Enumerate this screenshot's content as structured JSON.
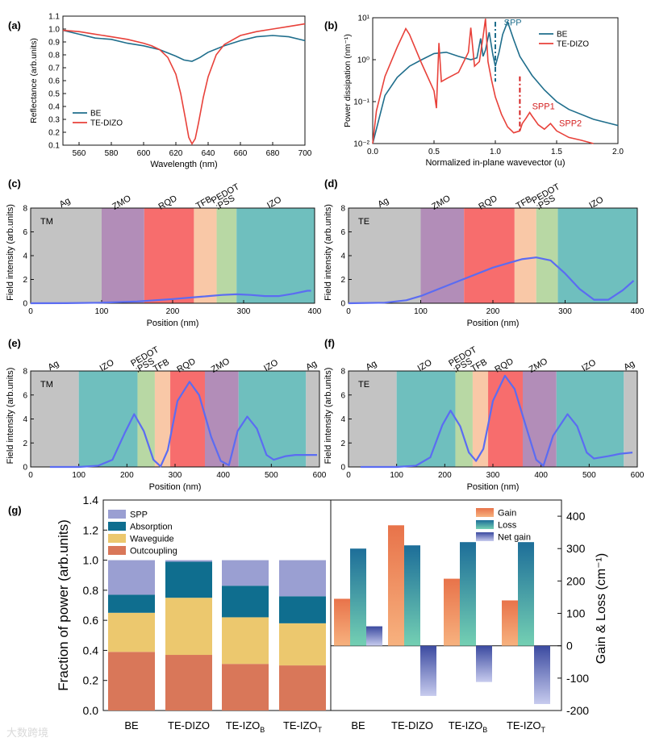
{
  "panels": {
    "a": "(a)",
    "b": "(b)",
    "c": "(c)",
    "d": "(d)",
    "e": "(e)",
    "f": "(f)",
    "g": "(g)"
  },
  "watermark": "大数跨境",
  "chart_data": [
    {
      "id": "a",
      "type": "line",
      "xlabel": "Wavelength (nm)",
      "ylabel": "Reflectance (arb.units)",
      "xlim": [
        550,
        700
      ],
      "ylim": [
        0.1,
        1.1
      ],
      "xticks": [
        560,
        580,
        600,
        620,
        640,
        660,
        680,
        700
      ],
      "yticks": [
        0.1,
        0.2,
        0.3,
        0.4,
        0.5,
        0.6,
        0.7,
        0.8,
        0.9,
        1.0,
        1.1
      ],
      "legend_position": "bottom-left",
      "series": [
        {
          "name": "BE",
          "color": "#1f6e8c",
          "x": [
            550,
            560,
            570,
            580,
            590,
            600,
            610,
            620,
            625,
            630,
            635,
            640,
            650,
            660,
            670,
            680,
            690,
            700
          ],
          "y": [
            0.99,
            0.96,
            0.93,
            0.92,
            0.89,
            0.87,
            0.84,
            0.79,
            0.76,
            0.75,
            0.78,
            0.82,
            0.87,
            0.91,
            0.94,
            0.95,
            0.94,
            0.91
          ]
        },
        {
          "name": "TE-DIZO",
          "color": "#e8413a",
          "x": [
            550,
            560,
            570,
            580,
            590,
            600,
            605,
            610,
            615,
            620,
            623,
            626,
            628,
            630,
            632,
            634,
            637,
            640,
            645,
            650,
            660,
            670,
            680,
            690,
            700
          ],
          "y": [
            0.99,
            0.98,
            0.96,
            0.94,
            0.92,
            0.89,
            0.87,
            0.84,
            0.78,
            0.65,
            0.5,
            0.3,
            0.16,
            0.11,
            0.15,
            0.27,
            0.47,
            0.63,
            0.8,
            0.88,
            0.95,
            0.98,
            1.0,
            1.02,
            1.04
          ]
        }
      ]
    },
    {
      "id": "b",
      "type": "line",
      "xlabel": "Normalized in-plane wavevector (u)",
      "ylabel": "Power dissipation (nm⁻¹)",
      "log_y": true,
      "xlim": [
        0.0,
        2.0
      ],
      "ylim": [
        0.01,
        10
      ],
      "xticks": [
        0.0,
        0.5,
        1.0,
        1.5,
        2.0
      ],
      "yticks": [
        0.01,
        0.1,
        1,
        10
      ],
      "ytick_labels": [
        "10⁻²",
        "10⁻¹",
        "10⁰",
        "10¹"
      ],
      "legend_position": "top-right",
      "annotations": [
        {
          "text": "SPP",
          "x": 1.07,
          "y": 6.5,
          "color": "#1f6e8c"
        },
        {
          "text": "SPP1",
          "x": 1.3,
          "y": 0.065,
          "color": "#d42020"
        },
        {
          "text": "SPP2",
          "x": 1.52,
          "y": 0.026,
          "color": "#d42020"
        }
      ],
      "markers": [
        {
          "x": 1.0,
          "ymin": 0.3,
          "ymax": 8,
          "color": "#1f6e8c"
        },
        {
          "x": 1.2,
          "ymin": 0.02,
          "ymax": 0.4,
          "color": "#d42020"
        }
      ],
      "series": [
        {
          "name": "BE",
          "color": "#1f6e8c",
          "x": [
            0.0,
            0.1,
            0.2,
            0.3,
            0.4,
            0.5,
            0.6,
            0.7,
            0.8,
            0.85,
            0.88,
            0.9,
            0.92,
            0.95,
            0.98,
            1.0,
            1.03,
            1.06,
            1.1,
            1.15,
            1.2,
            1.3,
            1.4,
            1.5,
            1.6,
            1.8,
            2.0
          ],
          "y": [
            0.01,
            0.14,
            0.38,
            0.7,
            1.0,
            1.4,
            1.5,
            1.2,
            1.0,
            1.1,
            3.2,
            1.2,
            1.7,
            4.5,
            1.3,
            0.7,
            1.5,
            4.0,
            8.0,
            3.0,
            1.2,
            0.42,
            0.19,
            0.1,
            0.065,
            0.038,
            0.027
          ]
        },
        {
          "name": "TE-DIZO",
          "color": "#e8413a",
          "x": [
            0.0,
            0.03,
            0.1,
            0.2,
            0.27,
            0.3,
            0.4,
            0.5,
            0.52,
            0.54,
            0.56,
            0.6,
            0.7,
            0.78,
            0.8,
            0.83,
            0.87,
            0.9,
            0.92,
            0.94,
            0.97,
            1.0,
            1.05,
            1.1,
            1.15,
            1.2,
            1.22,
            1.25,
            1.28,
            1.3,
            1.35,
            1.4,
            1.45,
            1.5,
            1.6,
            1.7,
            1.8
          ],
          "y": [
            0.01,
            0.06,
            0.4,
            2.0,
            5.5,
            4.0,
            0.8,
            0.18,
            0.07,
            2.5,
            0.3,
            0.35,
            0.5,
            1.5,
            5.8,
            0.7,
            0.9,
            3.5,
            9.5,
            0.9,
            0.32,
            0.13,
            0.05,
            0.025,
            0.018,
            0.02,
            0.03,
            0.04,
            0.055,
            0.045,
            0.028,
            0.022,
            0.03,
            0.02,
            0.014,
            0.012,
            0.01
          ]
        }
      ]
    },
    {
      "id": "c",
      "type": "line",
      "mode_label": "TM",
      "xlabel": "Position (nm)",
      "ylabel": "Field intensity (arb.units)",
      "xlim": [
        0,
        400
      ],
      "ylim": [
        0,
        8
      ],
      "xticks": [
        0,
        100,
        200,
        300,
        400
      ],
      "yticks": [
        0,
        2,
        4,
        6,
        8
      ],
      "layers": [
        {
          "name": "Ag",
          "from": 0,
          "to": 100,
          "color": "#c3c3c3"
        },
        {
          "name": "ZMO",
          "from": 100,
          "to": 160,
          "color": "#b28db8"
        },
        {
          "name": "RQD",
          "from": 160,
          "to": 230,
          "color": "#f76d6d"
        },
        {
          "name": "TFB",
          "from": 230,
          "to": 262,
          "color": "#f9c8a7"
        },
        {
          "name": "PEDOT\n:PSS",
          "from": 262,
          "to": 290,
          "color": "#b8d8a4"
        },
        {
          "name": "IZO",
          "from": 290,
          "to": 400,
          "color": "#6fbfbe"
        }
      ],
      "series": [
        {
          "name": "",
          "color": "#5b6cf2",
          "x": [
            0,
            50,
            100,
            150,
            200,
            240,
            270,
            290,
            310,
            330,
            350,
            370,
            390,
            395
          ],
          "y": [
            0.0,
            0.01,
            0.05,
            0.15,
            0.35,
            0.55,
            0.7,
            0.75,
            0.7,
            0.6,
            0.6,
            0.8,
            1.05,
            1.05
          ]
        }
      ]
    },
    {
      "id": "d",
      "type": "line",
      "mode_label": "TE",
      "xlabel": "Position (nm)",
      "ylabel": "Field intensity (arb.units)",
      "xlim": [
        0,
        400
      ],
      "ylim": [
        0,
        8
      ],
      "xticks": [
        0,
        100,
        200,
        300,
        400
      ],
      "yticks": [
        0,
        2,
        4,
        6,
        8
      ],
      "layers": [
        {
          "name": "Ag",
          "from": 0,
          "to": 100,
          "color": "#c3c3c3"
        },
        {
          "name": "ZMO",
          "from": 100,
          "to": 160,
          "color": "#b28db8"
        },
        {
          "name": "RQD",
          "from": 160,
          "to": 230,
          "color": "#f76d6d"
        },
        {
          "name": "TFB",
          "from": 230,
          "to": 260,
          "color": "#f9c8a7"
        },
        {
          "name": "PEDOT\n:PSS",
          "from": 260,
          "to": 290,
          "color": "#b8d8a4"
        },
        {
          "name": "IZO",
          "from": 290,
          "to": 400,
          "color": "#6fbfbe"
        }
      ],
      "series": [
        {
          "name": "",
          "color": "#5b6cf2",
          "x": [
            0,
            50,
            80,
            100,
            150,
            200,
            240,
            260,
            280,
            300,
            320,
            340,
            360,
            380,
            395
          ],
          "y": [
            0.0,
            0.05,
            0.25,
            0.6,
            1.8,
            3.0,
            3.7,
            3.85,
            3.6,
            2.5,
            1.2,
            0.3,
            0.3,
            1.1,
            1.9
          ]
        }
      ]
    },
    {
      "id": "e",
      "type": "line",
      "mode_label": "TM",
      "xlabel": "Position (nm)",
      "ylabel": "Field intensity (arb.units)",
      "xlim": [
        0,
        600
      ],
      "ylim": [
        0,
        8
      ],
      "xticks": [
        0,
        100,
        200,
        300,
        400,
        500,
        600
      ],
      "yticks": [
        0,
        2,
        4,
        6,
        8
      ],
      "layers": [
        {
          "name": "Ag",
          "from": 0,
          "to": 100,
          "color": "#c3c3c3"
        },
        {
          "name": "IZO",
          "from": 100,
          "to": 222,
          "color": "#6fbfbe"
        },
        {
          "name": "PEDOT\n:PSS",
          "from": 222,
          "to": 258,
          "color": "#b8d8a4"
        },
        {
          "name": "TFB",
          "from": 258,
          "to": 290,
          "color": "#f9c8a7"
        },
        {
          "name": "RQD",
          "from": 290,
          "to": 362,
          "color": "#f76d6d"
        },
        {
          "name": "ZMO",
          "from": 362,
          "to": 432,
          "color": "#b28db8"
        },
        {
          "name": "IZO",
          "from": 432,
          "to": 572,
          "color": "#6fbfbe"
        },
        {
          "name": "Ag",
          "from": 572,
          "to": 600,
          "color": "#c3c3c3"
        }
      ],
      "series": [
        {
          "name": "",
          "color": "#5b6cf2",
          "x": [
            40,
            100,
            140,
            170,
            195,
            215,
            235,
            255,
            270,
            285,
            305,
            330,
            350,
            375,
            395,
            412,
            430,
            450,
            470,
            490,
            505,
            530,
            550,
            595
          ],
          "y": [
            0.0,
            0.0,
            0.1,
            0.6,
            2.8,
            4.4,
            3.0,
            0.6,
            0.05,
            1.4,
            5.5,
            7.1,
            6.0,
            2.5,
            0.5,
            0.15,
            3.0,
            4.2,
            3.2,
            1.0,
            0.6,
            0.9,
            1.0,
            1.0
          ]
        }
      ]
    },
    {
      "id": "f",
      "type": "line",
      "mode_label": "TE",
      "xlabel": "Position (nm)",
      "ylabel": "Field intensity (arb.units)",
      "xlim": [
        0,
        600
      ],
      "ylim": [
        0,
        8
      ],
      "xticks": [
        0,
        100,
        200,
        300,
        400,
        500,
        600
      ],
      "yticks": [
        0,
        2,
        4,
        6,
        8
      ],
      "layers": [
        {
          "name": "Ag",
          "from": 0,
          "to": 100,
          "color": "#c3c3c3"
        },
        {
          "name": "IZO",
          "from": 100,
          "to": 222,
          "color": "#6fbfbe"
        },
        {
          "name": "PEDOT\n:PSS",
          "from": 222,
          "to": 258,
          "color": "#b8d8a4"
        },
        {
          "name": "TFB",
          "from": 258,
          "to": 290,
          "color": "#f9c8a7"
        },
        {
          "name": "RQD",
          "from": 290,
          "to": 362,
          "color": "#f76d6d"
        },
        {
          "name": "ZMO",
          "from": 362,
          "to": 432,
          "color": "#b28db8"
        },
        {
          "name": "IZO",
          "from": 432,
          "to": 572,
          "color": "#6fbfbe"
        },
        {
          "name": "Ag",
          "from": 572,
          "to": 600,
          "color": "#c3c3c3"
        }
      ],
      "series": [
        {
          "name": "",
          "color": "#5b6cf2",
          "x": [
            25,
            100,
            140,
            170,
            195,
            212,
            232,
            250,
            265,
            280,
            300,
            325,
            345,
            370,
            390,
            405,
            425,
            455,
            475,
            495,
            510,
            540,
            565,
            590
          ],
          "y": [
            0.0,
            0.0,
            0.1,
            0.8,
            3.5,
            4.7,
            3.4,
            1.2,
            0.5,
            1.5,
            5.5,
            7.6,
            6.5,
            3.2,
            0.6,
            0.1,
            2.6,
            4.4,
            3.4,
            1.2,
            0.7,
            0.9,
            1.1,
            1.2
          ]
        }
      ]
    },
    {
      "id": "g-left",
      "type": "bar",
      "stacked": true,
      "ylabel": "Fraction of power (arb.units)",
      "ylim": [
        0.0,
        1.4
      ],
      "yticks": [
        0.0,
        0.2,
        0.4,
        0.6,
        0.8,
        1.0,
        1.2,
        1.4
      ],
      "categories": [
        "BE",
        "TE-DIZO",
        "TE-IZO",
        "TE-IZO"
      ],
      "category_subscripts": [
        "",
        "",
        "B",
        "T"
      ],
      "legend_position": "top-left",
      "legend_order": [
        "SPP",
        "Absorption",
        "Waveguide",
        "Outcoupling"
      ],
      "series": [
        {
          "name": "Outcoupling",
          "color": "#d97759",
          "values": [
            0.39,
            0.37,
            0.31,
            0.3
          ]
        },
        {
          "name": "Waveguide",
          "color": "#ecc86e",
          "values": [
            0.26,
            0.38,
            0.31,
            0.28
          ]
        },
        {
          "name": "Absorption",
          "color": "#0f6e8f",
          "values": [
            0.12,
            0.24,
            0.21,
            0.18
          ]
        },
        {
          "name": "SPP",
          "color": "#9a9fd2",
          "values": [
            0.23,
            0.01,
            0.17,
            0.24
          ]
        }
      ]
    },
    {
      "id": "g-right",
      "type": "bar",
      "ylabel": "Gain & Loss (cm⁻¹)",
      "ylim": [
        -200,
        450
      ],
      "yticks": [
        -200,
        -100,
        0,
        100,
        200,
        300,
        400
      ],
      "categories": [
        "BE",
        "TE-DIZO",
        "TE-IZO",
        "TE-IZO"
      ],
      "category_subscripts": [
        "",
        "",
        "B",
        "T"
      ],
      "legend_position": "top-right",
      "series": [
        {
          "name": "Gain",
          "color": "#ef8e63",
          "values": [
            145,
            372,
            207,
            140
          ]
        },
        {
          "name": "Loss",
          "color": "#2d8fb0",
          "values": [
            300,
            310,
            320,
            320
          ]
        },
        {
          "name": "Net gain",
          "color": "#6470b8",
          "values": [
            60,
            -155,
            -112,
            -180
          ]
        }
      ]
    }
  ]
}
